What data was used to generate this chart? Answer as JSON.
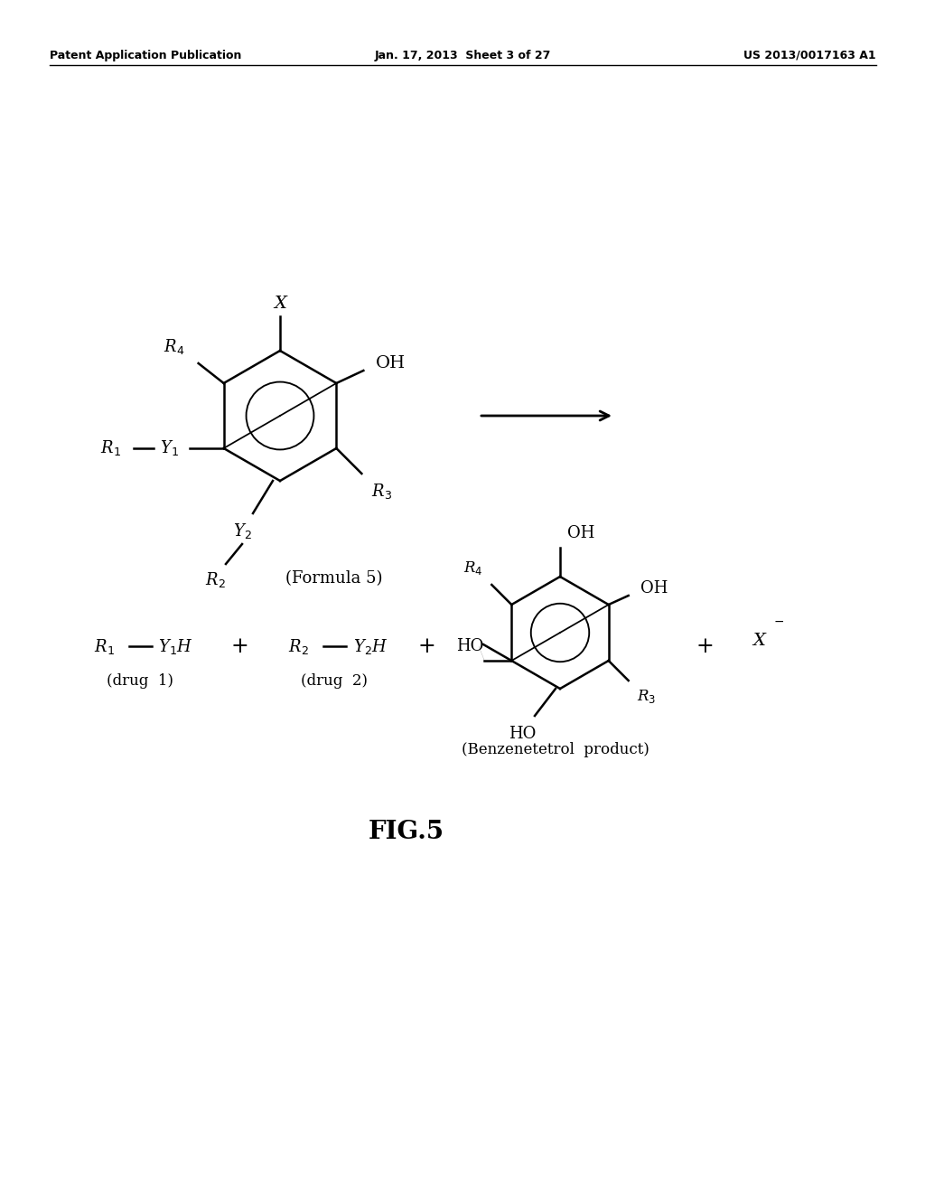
{
  "background_color": "#ffffff",
  "header_left": "Patent Application Publication",
  "header_center": "Jan. 17, 2013  Sheet 3 of 27",
  "header_right": "US 2013/0017163 A1",
  "fig_label": "FIG.5",
  "formula5_label": "(Formula 5)",
  "product_label": "(Benzenetetrol  product)"
}
